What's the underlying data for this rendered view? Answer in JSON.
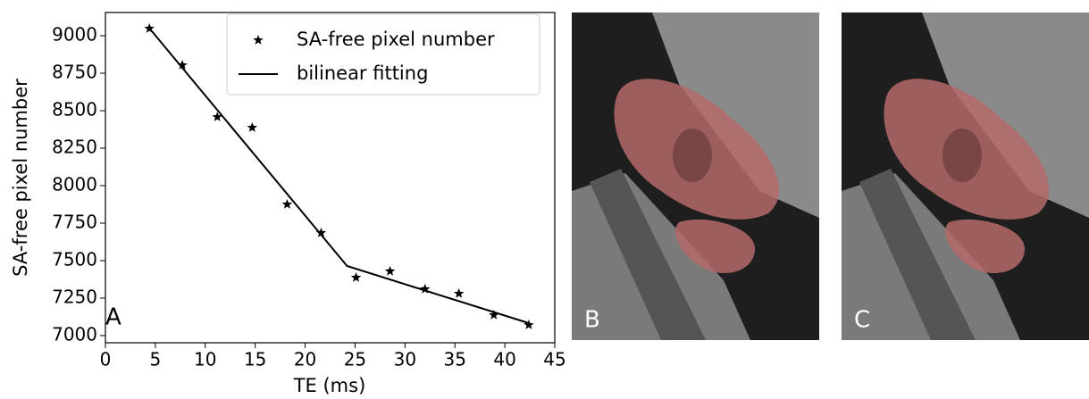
{
  "chart_data": {
    "type": "scatter",
    "xlabel": "TE (ms)",
    "ylabel": "SA-free pixel number",
    "annotation": "A",
    "xlim": [
      0,
      45
    ],
    "ylim": [
      6952,
      9155
    ],
    "xticks": [
      0,
      5,
      10,
      15,
      20,
      25,
      30,
      35,
      40,
      45
    ],
    "yticks": [
      7000,
      7250,
      7500,
      7750,
      8000,
      8250,
      8500,
      8750,
      9000
    ],
    "legend": "upper right",
    "series": [
      {
        "name": "SA-free pixel number",
        "type": "scatter",
        "marker": "star",
        "color": "#000000",
        "x": [
          4.4,
          7.7,
          11.2,
          14.7,
          18.2,
          21.6,
          25.1,
          28.5,
          32.0,
          35.4,
          38.9,
          42.4
        ],
        "values": [
          9048,
          8804,
          8458,
          8387,
          7875,
          7685,
          7387,
          7429,
          7310,
          7280,
          7137,
          7071
        ]
      },
      {
        "name": "bilinear fitting",
        "type": "line",
        "color": "#000000",
        "x": [
          4.4,
          24.2,
          42.4
        ],
        "values": [
          9050,
          7464,
          7083
        ]
      }
    ]
  },
  "images": [
    {
      "label": "B"
    },
    {
      "label": "C"
    }
  ]
}
